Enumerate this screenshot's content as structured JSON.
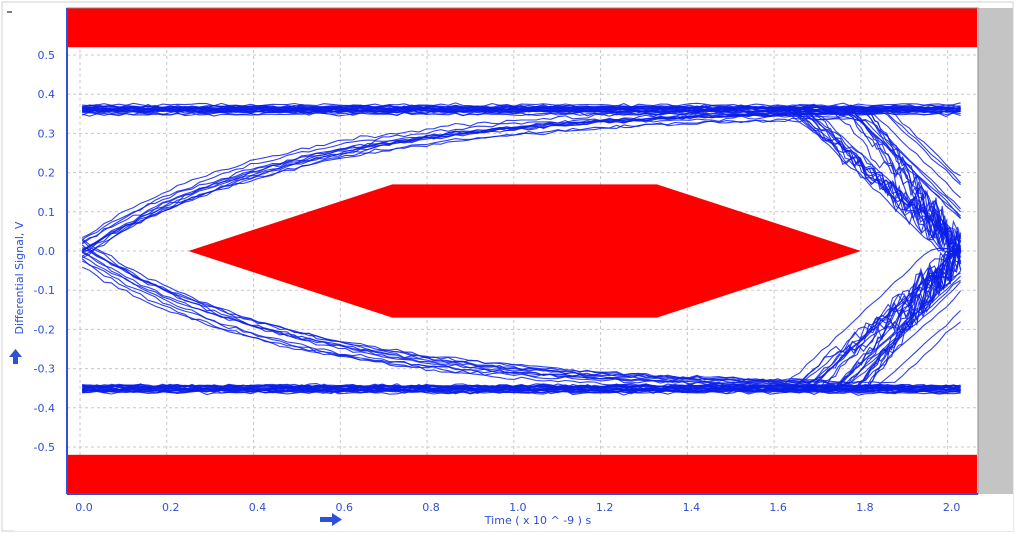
{
  "chart_data": {
    "type": "eye-diagram",
    "xlabel": "Time  ( x 10 ^ -9 ) s",
    "ylabel": "Differential Signal, V",
    "xlim": [
      -0.03,
      2.07
    ],
    "ylim": [
      -0.62,
      0.62
    ],
    "x_ticks": [
      "0.0",
      "0.2",
      "0.4",
      "0.6",
      "0.8",
      "1.0",
      "1.2",
      "1.4",
      "1.6",
      "1.8",
      "2.0"
    ],
    "y_ticks": [
      "0.5",
      "0.4",
      "0.3",
      "0.2",
      "0.1",
      "0.0",
      "-0.1",
      "-0.2",
      "-0.3",
      "-0.4",
      "-0.5"
    ],
    "grid": true,
    "levels": {
      "high": 0.36,
      "low": -0.35,
      "crossing_time": 0.0,
      "unit_interval": 2.0
    },
    "mask": {
      "upper_region_min_v": 0.52,
      "lower_region_max_v": -0.52,
      "inner_polygon": [
        [
          0.25,
          0.0
        ],
        [
          0.72,
          0.17
        ],
        [
          1.33,
          0.17
        ],
        [
          1.8,
          0.0
        ],
        [
          1.33,
          -0.17
        ],
        [
          0.72,
          -0.17
        ]
      ]
    },
    "trace_count": 70
  },
  "colors": {
    "trace": "#0a1ee6",
    "mask": "#ff0000",
    "axis": "#2f50d8",
    "grid": "#c8c8c8",
    "frame": "#bdbdbd"
  }
}
